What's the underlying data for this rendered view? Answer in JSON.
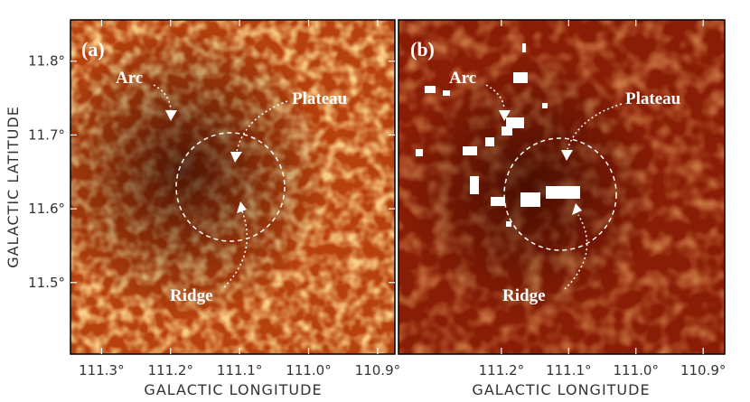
{
  "chart_data": [
    {
      "type": "image",
      "panel_label": "(a)",
      "xlabel": "GALACTIC  LONGITUDE",
      "ylabel": "GALACTIC  LATITUDE",
      "xlim": [
        111.345,
        110.875
      ],
      "ylim": [
        11.403,
        11.856
      ],
      "xticks": [
        {
          "value": 111.3,
          "label": "111.3°"
        },
        {
          "value": 111.2,
          "label": "111.2°"
        },
        {
          "value": 111.1,
          "label": "111.1°"
        },
        {
          "value": 111.0,
          "label": "111.0°"
        },
        {
          "value": 110.9,
          "label": "110.9°"
        }
      ],
      "yticks": [
        {
          "value": 11.5,
          "label": "11.5°"
        },
        {
          "value": 11.6,
          "label": "11.6°"
        },
        {
          "value": 11.7,
          "label": "11.7°"
        },
        {
          "value": 11.8,
          "label": "11.8°"
        }
      ],
      "annotations": [
        "Arc",
        "Plateau",
        "Ridge"
      ]
    },
    {
      "type": "image",
      "panel_label": "(b)",
      "xlabel": "GALACTIC  LONGITUDE",
      "xlim": [
        111.353,
        110.868
      ],
      "ylim": [
        11.403,
        11.856
      ],
      "xticks": [
        {
          "value": 111.2,
          "label": "111.2°"
        },
        {
          "value": 111.1,
          "label": "111.1°"
        },
        {
          "value": 111.0,
          "label": "111.0°"
        },
        {
          "value": 110.9,
          "label": "110.9°"
        }
      ],
      "annotations": [
        "Arc",
        "Plateau",
        "Ridge"
      ]
    }
  ]
}
